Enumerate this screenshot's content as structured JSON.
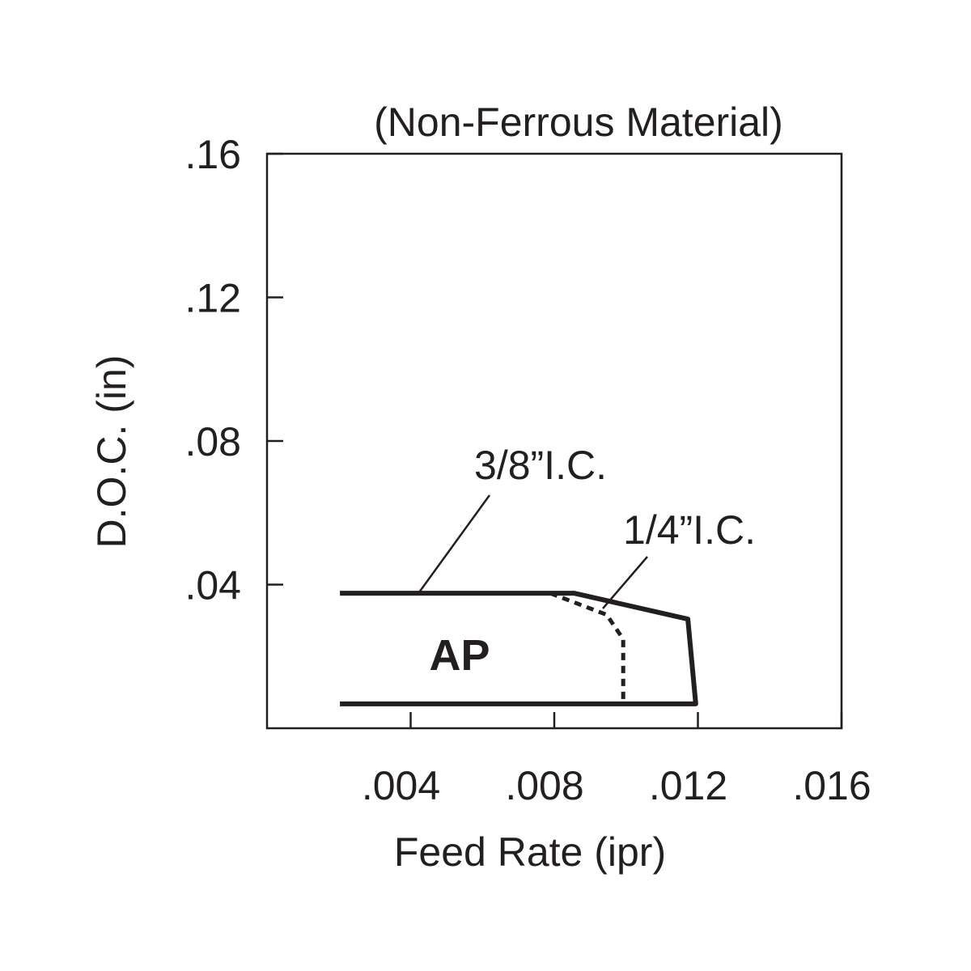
{
  "chart_data": {
    "type": "region",
    "title": "(Non-Ferrous Material)",
    "x_label": "Feed Rate (ipr)",
    "y_label": "D.O.C. (in)",
    "xlim": [
      0,
      0.016
    ],
    "ylim": [
      0,
      0.16
    ],
    "xticks": [
      {
        "value": 0.004,
        "label": ".004"
      },
      {
        "value": 0.008,
        "label": ".008"
      },
      {
        "value": 0.012,
        "label": ".012"
      },
      {
        "value": 0.016,
        "label": ".016"
      }
    ],
    "yticks": [
      {
        "value": 0.04,
        "label": ".04"
      },
      {
        "value": 0.08,
        "label": ".08"
      },
      {
        "value": 0.12,
        "label": ".12"
      },
      {
        "value": 0.16,
        "label": ".16"
      }
    ],
    "series": [
      {
        "name": "3/8”I.C.",
        "color": "#231f20",
        "style": "solid",
        "x": [
          0.00203,
          0.00856,
          0.01172,
          0.01194,
          0.00203
        ],
        "values": [
          0.0376,
          0.0376,
          0.0304,
          0.0068,
          0.0068
        ]
      },
      {
        "name": "1/4”I.C.",
        "color": "#231f20",
        "style": "dotted",
        "x": [
          0.00789,
          0.00946,
          0.00992,
          0.00992
        ],
        "values": [
          0.0376,
          0.0316,
          0.0248,
          0.0068
        ]
      }
    ],
    "region_label": "AP"
  }
}
